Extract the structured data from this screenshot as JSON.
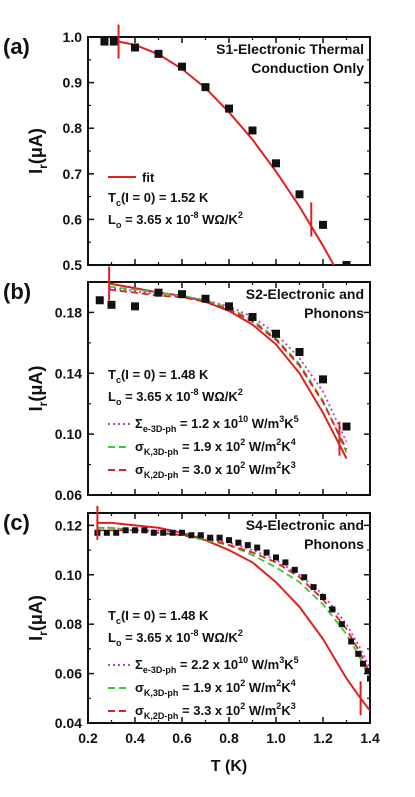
{
  "chart_data": [
    {
      "type": "scatter",
      "panel_label": "(a)",
      "title_lines": [
        "S1-Electronic Thermal",
        "Conduction Only"
      ],
      "ylabel": "I",
      "ylabel_sub": "r",
      "ylabel_unit": "(μA)",
      "ylim": [
        0.5,
        1.0
      ],
      "yticks": [
        0.5,
        0.6,
        0.7,
        0.8,
        0.9,
        1.0
      ],
      "ytick_labels": [
        "0.5",
        "0.6",
        "0.7",
        "0.8",
        "0.9",
        "1.0"
      ],
      "legend": [
        {
          "name": "fit",
          "color": "#e02020",
          "dash": "solid"
        }
      ],
      "annotations": [
        {
          "main": "T",
          "sub": "c",
          "rest": "(I = 0) = 1.52 K",
          "sup": ""
        },
        {
          "main": "L",
          "sub": "o",
          "rest": " = 3.65 x 10",
          "sup": "-8",
          "tail": " WΩ/K",
          "sup2": "2"
        }
      ],
      "data": {
        "x": [
          0.27,
          0.31,
          0.4,
          0.5,
          0.6,
          0.7,
          0.8,
          0.9,
          1.0,
          1.1,
          1.2,
          1.3
        ],
        "y": [
          0.99,
          0.99,
          0.977,
          0.963,
          0.935,
          0.89,
          0.843,
          0.795,
          0.723,
          0.655,
          0.588,
          0.5
        ]
      },
      "series": [
        {
          "name": "fit",
          "color": "#e02020",
          "dash": "solid",
          "x": [
            0.33,
            0.4,
            0.5,
            0.6,
            0.7,
            0.8,
            0.9,
            1.0,
            1.1,
            1.2,
            1.3
          ],
          "y": [
            0.99,
            0.983,
            0.962,
            0.93,
            0.888,
            0.835,
            0.775,
            0.705,
            0.628,
            0.542,
            0.45
          ]
        }
      ],
      "markers": [
        {
          "x": 0.33,
          "y": 0.99
        },
        {
          "x": 1.15,
          "y": 0.6
        }
      ]
    },
    {
      "type": "scatter",
      "panel_label": "(b)",
      "title_lines": [
        "S2-Electronic and",
        "Phonons"
      ],
      "ylabel": "I",
      "ylabel_sub": "r",
      "ylabel_unit": "(μA)",
      "ylim": [
        0.06,
        0.2
      ],
      "yticks": [
        0.06,
        0.1,
        0.14,
        0.18
      ],
      "ytick_labels": [
        "0.06",
        "0.10",
        "0.14",
        "0.18"
      ],
      "legend": [
        {
          "name": "Σ",
          "sub": "e-3D-ph",
          "value": " = 1.2 x 10",
          "sup": "10",
          "unit": " W/m",
          "sup2": "3",
          "tail": "K",
          "sup3": "5",
          "color": "#cc33cc",
          "dash": "dot"
        },
        {
          "name": "σ",
          "sub": "K,3D-ph",
          "value": " = 1.9 x 10",
          "sup": "2",
          "unit": " W/m",
          "sup2": "2",
          "tail": "K",
          "sup3": "4",
          "color": "#33cc33",
          "dash": "dash"
        },
        {
          "name": "σ",
          "sub": "K,2D-ph",
          "value": " = 3.0 x 10",
          "sup": "2",
          "unit": " W/m",
          "sup2": "2",
          "tail": "K",
          "sup3": "3",
          "color": "#e02020",
          "dash": "dash"
        }
      ],
      "annotations": [
        {
          "main": "T",
          "sub": "c",
          "rest": "(I = 0) = 1.48 K",
          "sup": ""
        },
        {
          "main": "L",
          "sub": "o",
          "rest": " = 3.65 x 10",
          "sup": "-8",
          "tail": " WΩ/K",
          "sup2": "2"
        }
      ],
      "data": {
        "x": [
          0.25,
          0.3,
          0.4,
          0.5,
          0.6,
          0.7,
          0.8,
          0.9,
          1.0,
          1.1,
          1.2,
          1.3
        ],
        "y": [
          0.188,
          0.185,
          0.184,
          0.193,
          0.192,
          0.189,
          0.184,
          0.177,
          0.166,
          0.154,
          0.136,
          0.105
        ]
      },
      "series": [
        {
          "name": "solid-fit",
          "color": "#e02020",
          "dash": "solid",
          "x": [
            0.29,
            0.4,
            0.5,
            0.6,
            0.7,
            0.8,
            0.9,
            1.0,
            1.1,
            1.2,
            1.25,
            1.3
          ],
          "y": [
            0.199,
            0.196,
            0.193,
            0.191,
            0.187,
            0.181,
            0.172,
            0.159,
            0.14,
            0.114,
            0.099,
            0.084
          ]
        },
        {
          "name": "magenta-dot",
          "color": "#cc33cc",
          "dash": "dot",
          "x": [
            0.29,
            0.4,
            0.5,
            0.6,
            0.7,
            0.8,
            0.9,
            1.0,
            1.1,
            1.2,
            1.3
          ],
          "y": [
            0.196,
            0.194,
            0.192,
            0.191,
            0.188,
            0.184,
            0.177,
            0.166,
            0.15,
            0.128,
            0.095
          ]
        },
        {
          "name": "green-dash",
          "color": "#33cc33",
          "dash": "dash",
          "x": [
            0.29,
            0.4,
            0.5,
            0.6,
            0.7,
            0.8,
            0.9,
            1.0,
            1.1,
            1.2,
            1.3
          ],
          "y": [
            0.197,
            0.195,
            0.193,
            0.191,
            0.188,
            0.183,
            0.175,
            0.163,
            0.146,
            0.122,
            0.088
          ]
        },
        {
          "name": "red-dash",
          "color": "#e02020",
          "dash": "dash",
          "x": [
            0.29,
            0.4,
            0.5,
            0.6,
            0.7,
            0.8,
            0.9,
            1.0,
            1.1,
            1.2,
            1.3
          ],
          "y": [
            0.195,
            0.193,
            0.191,
            0.19,
            0.187,
            0.182,
            0.174,
            0.162,
            0.145,
            0.121,
            0.09
          ]
        }
      ],
      "markers": [
        {
          "x": 0.29,
          "y": 0.199
        },
        {
          "x": 1.27,
          "y": 0.097
        }
      ]
    },
    {
      "type": "scatter",
      "panel_label": "(c)",
      "title_lines": [
        "S4-Electronic and",
        "Phonons"
      ],
      "ylabel": "I",
      "ylabel_sub": "r",
      "ylabel_unit": "(μA)",
      "xlabel": "T (K)",
      "xlim": [
        0.2,
        1.4
      ],
      "xticks": [
        0.2,
        0.4,
        0.6,
        0.8,
        1.0,
        1.2,
        1.4
      ],
      "xtick_labels": [
        "0.2",
        "0.4",
        "0.6",
        "0.8",
        "1.0",
        "1.2",
        "1.4"
      ],
      "ylim": [
        0.04,
        0.125
      ],
      "yticks": [
        0.04,
        0.06,
        0.08,
        0.1,
        0.12
      ],
      "ytick_labels": [
        "0.04",
        "0.06",
        "0.08",
        "0.10",
        "0.12"
      ],
      "legend": [
        {
          "name": "Σ",
          "sub": "e-3D-ph",
          "value": " = 2.2 x 10",
          "sup": "10",
          "unit": " W/m",
          "sup2": "3",
          "tail": "K",
          "sup3": "5",
          "color": "#cc33cc",
          "dash": "dot"
        },
        {
          "name": "σ",
          "sub": "K,3D-ph",
          "value": " = 1.9 x 10",
          "sup": "2",
          "unit": " W/m",
          "sup2": "2",
          "tail": "K",
          "sup3": "4",
          "color": "#33cc33",
          "dash": "dash"
        },
        {
          "name": "σ",
          "sub": "K,2D-ph",
          "value": " = 3.3 x 10",
          "sup": "2",
          "unit": " W/m",
          "sup2": "2",
          "tail": "K",
          "sup3": "3",
          "color": "#e02020",
          "dash": "dash"
        }
      ],
      "annotations": [
        {
          "main": "T",
          "sub": "c",
          "rest": "(I = 0) = 1.48 K",
          "sup": ""
        },
        {
          "main": "L",
          "sub": "o",
          "rest": " = 3.65 x 10",
          "sup": "-8",
          "tail": " WΩ/K",
          "sup2": "2"
        }
      ],
      "data": {
        "x": [
          0.24,
          0.28,
          0.32,
          0.36,
          0.4,
          0.44,
          0.48,
          0.52,
          0.56,
          0.6,
          0.64,
          0.68,
          0.72,
          0.76,
          0.8,
          0.84,
          0.88,
          0.92,
          0.96,
          1.0,
          1.04,
          1.08,
          1.12,
          1.16,
          1.2,
          1.24,
          1.28,
          1.32,
          1.35,
          1.37,
          1.39,
          1.4
        ],
        "y": [
          0.117,
          0.117,
          0.117,
          0.118,
          0.118,
          0.118,
          0.117,
          0.117,
          0.117,
          0.117,
          0.116,
          0.116,
          0.115,
          0.115,
          0.114,
          0.113,
          0.112,
          0.111,
          0.109,
          0.107,
          0.105,
          0.102,
          0.099,
          0.095,
          0.091,
          0.086,
          0.08,
          0.073,
          0.068,
          0.064,
          0.061,
          0.058
        ]
      },
      "series": [
        {
          "name": "solid-fit",
          "color": "#e02020",
          "dash": "solid",
          "x": [
            0.24,
            0.3,
            0.4,
            0.5,
            0.6,
            0.7,
            0.8,
            0.9,
            1.0,
            1.1,
            1.2,
            1.3,
            1.36,
            1.4
          ],
          "y": [
            0.121,
            0.121,
            0.12,
            0.119,
            0.117,
            0.114,
            0.11,
            0.105,
            0.097,
            0.087,
            0.074,
            0.058,
            0.05,
            0.045
          ]
        },
        {
          "name": "magenta-dot",
          "color": "#cc33cc",
          "dash": "dot",
          "x": [
            0.24,
            0.3,
            0.4,
            0.5,
            0.6,
            0.7,
            0.8,
            0.9,
            1.0,
            1.1,
            1.2,
            1.3,
            1.36,
            1.4
          ],
          "y": [
            0.119,
            0.119,
            0.118,
            0.118,
            0.117,
            0.115,
            0.113,
            0.11,
            0.106,
            0.1,
            0.092,
            0.08,
            0.07,
            0.062
          ]
        },
        {
          "name": "green-dash",
          "color": "#33cc33",
          "dash": "dash",
          "x": [
            0.24,
            0.3,
            0.4,
            0.5,
            0.6,
            0.7,
            0.8,
            0.9,
            1.0,
            1.1,
            1.2,
            1.3,
            1.36,
            1.4
          ],
          "y": [
            0.119,
            0.119,
            0.118,
            0.117,
            0.116,
            0.114,
            0.112,
            0.108,
            0.103,
            0.097,
            0.088,
            0.076,
            0.066,
            0.058
          ]
        },
        {
          "name": "red-dash",
          "color": "#e02020",
          "dash": "dash",
          "x": [
            0.24,
            0.3,
            0.4,
            0.5,
            0.6,
            0.7,
            0.8,
            0.9,
            1.0,
            1.1,
            1.2,
            1.3,
            1.36,
            1.4
          ],
          "y": [
            0.118,
            0.118,
            0.118,
            0.117,
            0.116,
            0.115,
            0.112,
            0.109,
            0.105,
            0.099,
            0.09,
            0.078,
            0.068,
            0.06
          ]
        }
      ],
      "markers": [
        {
          "x": 0.24,
          "y": 0.121
        },
        {
          "x": 1.36,
          "y": 0.05
        }
      ]
    }
  ]
}
